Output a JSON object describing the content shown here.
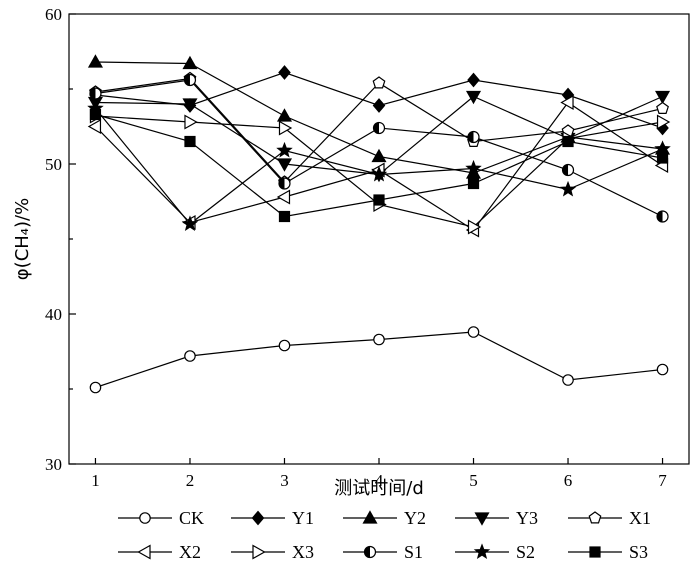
{
  "chart_data": {
    "type": "line",
    "xlabel": "测试时间/d",
    "ylabel": "φ(CH₄)/%",
    "x": [
      1,
      2,
      3,
      4,
      5,
      6,
      7
    ],
    "xlim": [
      0.72,
      7.28
    ],
    "ylim": [
      30,
      60
    ],
    "xticks": [
      1,
      2,
      3,
      4,
      5,
      6,
      7
    ],
    "yticks": [
      30,
      40,
      50,
      60
    ],
    "grid": false,
    "legend_position": "bottom",
    "series": [
      {
        "name": "CK",
        "marker": "circle",
        "values": [
          35.1,
          37.2,
          37.9,
          38.3,
          38.8,
          35.6,
          36.3
        ]
      },
      {
        "name": "Y1",
        "marker": "diamond",
        "values": [
          54.6,
          53.9,
          56.1,
          53.9,
          55.6,
          54.6,
          52.4
        ]
      },
      {
        "name": "Y2",
        "marker": "triangle-up",
        "values": [
          56.8,
          56.7,
          53.2,
          50.5,
          49.4,
          51.8,
          51.0
        ]
      },
      {
        "name": "Y3",
        "marker": "triangle-down",
        "values": [
          54.1,
          54.0,
          50.0,
          49.3,
          54.5,
          51.7,
          54.5
        ]
      },
      {
        "name": "X1",
        "marker": "pentagon",
        "values": [
          54.8,
          55.7,
          48.8,
          55.4,
          51.5,
          52.2,
          53.7
        ]
      },
      {
        "name": "X2",
        "marker": "triangle-left",
        "values": [
          52.5,
          46.1,
          47.8,
          49.6,
          45.6,
          54.1,
          49.9
        ]
      },
      {
        "name": "X3",
        "marker": "triangle-right",
        "values": [
          53.2,
          52.8,
          52.4,
          47.3,
          45.8,
          51.7,
          52.8
        ]
      },
      {
        "name": "S1",
        "marker": "half-circle",
        "values": [
          54.7,
          55.6,
          48.7,
          52.4,
          51.8,
          49.6,
          46.5
        ]
      },
      {
        "name": "S2",
        "marker": "star",
        "values": [
          53.7,
          46.0,
          50.9,
          49.3,
          49.7,
          48.3,
          51.0
        ]
      },
      {
        "name": "S3",
        "marker": "square",
        "values": [
          53.3,
          51.5,
          46.5,
          47.6,
          48.7,
          51.5,
          50.4
        ]
      }
    ]
  }
}
